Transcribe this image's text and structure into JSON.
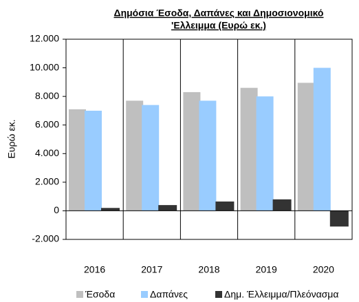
{
  "chart_data": {
    "type": "bar",
    "title": [
      "Δημόσια Έσοδα, Δαπάνες και Δημοσιονομικό",
      "'Ελλειμμα (Ευρώ εκ.)"
    ],
    "y_label": "Ευρώ εκ.",
    "categories": [
      "2016",
      "2017",
      "2018",
      "2019",
      "2020"
    ],
    "series": [
      {
        "name": "Έσοδα",
        "color": "#bfbfbf",
        "values": [
          7100,
          7700,
          8300,
          8600,
          8950
        ]
      },
      {
        "name": "Δαπάνες",
        "color": "#99ccff",
        "values": [
          7000,
          7400,
          7700,
          8000,
          10000
        ]
      },
      {
        "name": "Δημ. Έλλειμμα/Πλεόνασμα",
        "color": "#333333",
        "values": [
          200,
          400,
          650,
          800,
          -1100
        ]
      }
    ],
    "ylim": [
      -2000,
      12000
    ],
    "yticks": [
      {
        "value": -2000,
        "label": "-2.000"
      },
      0,
      {
        "value": 2000,
        "label": "2.000"
      },
      {
        "value": 4000,
        "label": "4.000"
      },
      {
        "value": 6000,
        "label": "6.000"
      },
      {
        "value": 8000,
        "label": "8.000"
      },
      {
        "value": 10000,
        "label": "10.000"
      },
      {
        "value": 12000,
        "label": "12.000"
      }
    ],
    "legend": "bottom"
  }
}
